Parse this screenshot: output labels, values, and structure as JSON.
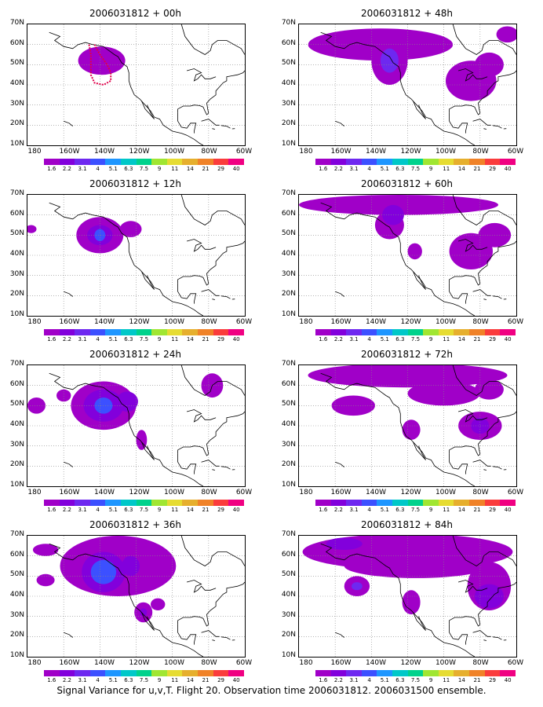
{
  "panels": [
    {
      "title": "2006031812 + 00h",
      "lead": "00h"
    },
    {
      "title": "2006031812 + 48h",
      "lead": "48h"
    },
    {
      "title": "2006031812 + 12h",
      "lead": "12h"
    },
    {
      "title": "2006031812 + 60h",
      "lead": "60h"
    },
    {
      "title": "2006031812 + 24h",
      "lead": "24h"
    },
    {
      "title": "2006031812 + 72h",
      "lead": "72h"
    },
    {
      "title": "2006031812 + 36h",
      "lead": "36h"
    },
    {
      "title": "2006031812 + 84h",
      "lead": "84h"
    }
  ],
  "lat_labels": [
    "70N",
    "60N",
    "50N",
    "40N",
    "30N",
    "20N",
    "10N"
  ],
  "lon_labels": [
    "180",
    "160W",
    "140W",
    "120W",
    "100W",
    "80W",
    "60W"
  ],
  "colorbar": {
    "labels": [
      "1.6",
      "2.2",
      "3.1",
      "4",
      "5.1",
      "6.3",
      "7.5",
      "9",
      "11",
      "14",
      "21",
      "29",
      "40"
    ],
    "colors": [
      "#a000c8",
      "#8200dc",
      "#6e28f0",
      "#3c50ff",
      "#1e96ff",
      "#00c8c8",
      "#00d28c",
      "#a0e632",
      "#e6dc32",
      "#e6af2d",
      "#f08228",
      "#fa3c3c",
      "#f00082"
    ]
  },
  "caption": "Signal Variance for u,v,T. Flight 20. Observation time 2006031812. 2006031500 ensemble."
}
